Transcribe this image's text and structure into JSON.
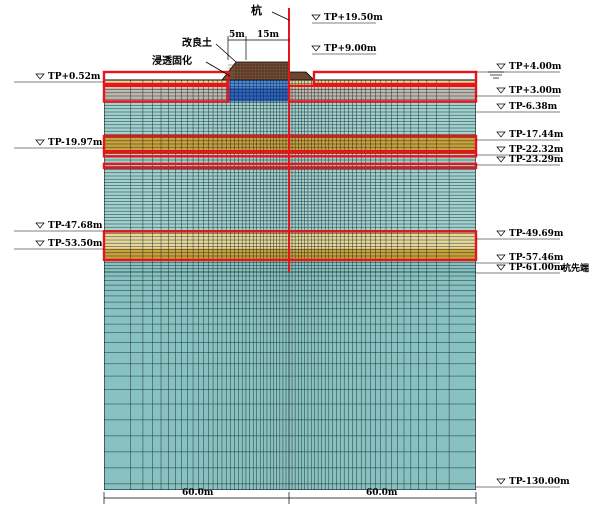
{
  "title_labels": {
    "pile": "杭",
    "improved_soil": "改良土",
    "infiltration": "浸透固化",
    "pile_tip": "杭先端"
  },
  "dimensions": {
    "top_left": "5m",
    "top_right": "15m",
    "bottom_left": "60.0m",
    "bottom_right": "60.0m"
  },
  "elevations": {
    "left": [
      {
        "label": "TP+0.52m",
        "value": 0.52
      },
      {
        "label": "TP-19.97m",
        "value": -19.97
      },
      {
        "label": "TP-47.68m",
        "value": -47.68
      },
      {
        "label": "TP-53.50m",
        "value": -53.5
      }
    ],
    "right": [
      {
        "label": "TP+19.50m",
        "value": 19.5
      },
      {
        "label": "TP+9.00m",
        "value": 9.0
      },
      {
        "label": "TP+4.00m",
        "value": 4.0
      },
      {
        "label": "TP+3.00m",
        "value": 3.0
      },
      {
        "label": "TP-6.38m",
        "value": -6.38
      },
      {
        "label": "TP-17.44m",
        "value": -17.44
      },
      {
        "label": "TP-22.32m",
        "value": -22.32
      },
      {
        "label": "TP-23.29m",
        "value": -23.29
      },
      {
        "label": "TP-49.69m",
        "value": -49.69
      },
      {
        "label": "TP-57.46m",
        "value": -57.46
      },
      {
        "label": "TP-61.00m",
        "value": -61.0
      },
      {
        "label": "TP-130.00m",
        "value": -130.0
      }
    ]
  },
  "colors": {
    "mesh_line": "#1a2424",
    "clay": "#9fd1cf",
    "clay_deep": "#87c1c1",
    "sand": "#c9a23c",
    "sand_light": "#e6d89a",
    "gray_layer": "#c0b8b0",
    "embankment": "#7a5238",
    "improved": "#2a64c8",
    "highlight": "#e8141a",
    "pile": "#e8141a"
  }
}
